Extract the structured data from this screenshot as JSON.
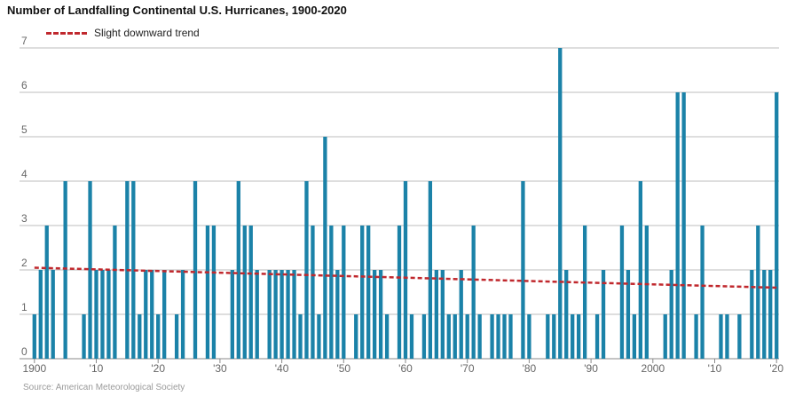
{
  "chart_data": {
    "type": "bar",
    "title": "Number of Landfalling Continental U.S. Hurricanes, 1900-2020",
    "legend": {
      "trend_label": "Slight downward trend",
      "trend_color": "#c0282d",
      "placement": "top-left"
    },
    "source": "Source: American Meteorological Society",
    "bar_color": "#1b82a8",
    "grid": true,
    "ylim": [
      0,
      7
    ],
    "yticks": [
      "0",
      "1",
      "2",
      "3",
      "4",
      "5",
      "6",
      "7"
    ],
    "xlim": [
      1900,
      2020
    ],
    "xticks": [
      {
        "year": 1900,
        "label": "1900"
      },
      {
        "year": 1910,
        "label": "'10"
      },
      {
        "year": 1920,
        "label": "'20"
      },
      {
        "year": 1930,
        "label": "'30"
      },
      {
        "year": 1940,
        "label": "'40"
      },
      {
        "year": 1950,
        "label": "'50"
      },
      {
        "year": 1960,
        "label": "'60"
      },
      {
        "year": 1970,
        "label": "'70"
      },
      {
        "year": 1980,
        "label": "'80"
      },
      {
        "year": 1990,
        "label": "'90"
      },
      {
        "year": 2000,
        "label": "2000"
      },
      {
        "year": 2010,
        "label": "'10"
      },
      {
        "year": 2020,
        "label": "'20"
      }
    ],
    "years": [
      1900,
      1901,
      1902,
      1903,
      1904,
      1905,
      1906,
      1907,
      1908,
      1909,
      1910,
      1911,
      1912,
      1913,
      1914,
      1915,
      1916,
      1917,
      1918,
      1919,
      1920,
      1921,
      1922,
      1923,
      1924,
      1925,
      1926,
      1927,
      1928,
      1929,
      1930,
      1931,
      1932,
      1933,
      1934,
      1935,
      1936,
      1937,
      1938,
      1939,
      1940,
      1941,
      1942,
      1943,
      1944,
      1945,
      1946,
      1947,
      1948,
      1949,
      1950,
      1951,
      1952,
      1953,
      1954,
      1955,
      1956,
      1957,
      1958,
      1959,
      1960,
      1961,
      1962,
      1963,
      1964,
      1965,
      1966,
      1967,
      1968,
      1969,
      1970,
      1971,
      1972,
      1973,
      1974,
      1975,
      1976,
      1977,
      1978,
      1979,
      1980,
      1981,
      1982,
      1983,
      1984,
      1985,
      1986,
      1987,
      1988,
      1989,
      1990,
      1991,
      1992,
      1993,
      1994,
      1995,
      1996,
      1997,
      1998,
      1999,
      2000,
      2001,
      2002,
      2003,
      2004,
      2005,
      2006,
      2007,
      2008,
      2009,
      2010,
      2011,
      2012,
      2013,
      2014,
      2015,
      2016,
      2017,
      2018,
      2019,
      2020
    ],
    "values": [
      1,
      2,
      3,
      2,
      0,
      4,
      0,
      0,
      1,
      4,
      2,
      2,
      2,
      3,
      0,
      4,
      4,
      1,
      2,
      2,
      1,
      2,
      0,
      1,
      2,
      0,
      4,
      0,
      3,
      3,
      0,
      0,
      2,
      4,
      3,
      3,
      2,
      0,
      2,
      2,
      2,
      2,
      2,
      1,
      4,
      3,
      1,
      5,
      3,
      2,
      3,
      0,
      1,
      3,
      3,
      2,
      2,
      1,
      0,
      3,
      4,
      1,
      0,
      1,
      4,
      2,
      2,
      1,
      1,
      2,
      1,
      3,
      1,
      0,
      1,
      1,
      1,
      1,
      0,
      4,
      1,
      0,
      0,
      1,
      1,
      7,
      2,
      1,
      1,
      3,
      0,
      1,
      2,
      0,
      0,
      3,
      2,
      1,
      4,
      3,
      0,
      0,
      1,
      2,
      6,
      6,
      0,
      1,
      3,
      0,
      0,
      1,
      1,
      0,
      1,
      0,
      2,
      3,
      2,
      2,
      6
    ],
    "trend": {
      "start_year": 1900,
      "start_value": 2.05,
      "end_year": 2020,
      "end_value": 1.6
    }
  }
}
